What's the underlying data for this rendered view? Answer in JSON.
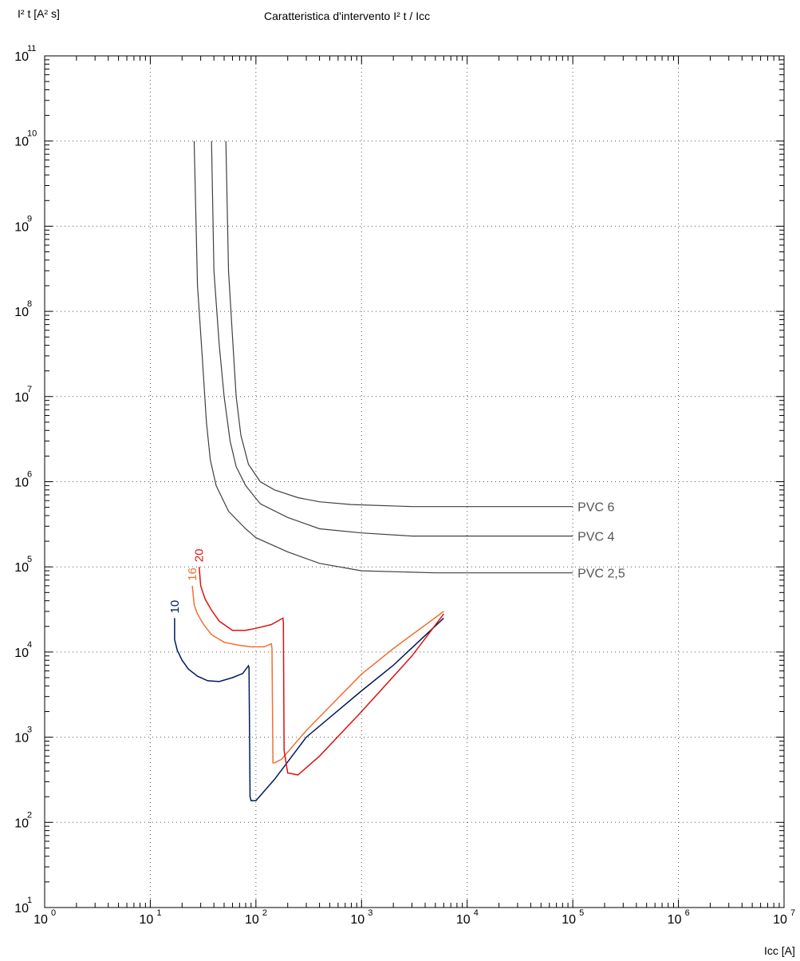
{
  "chart_data": {
    "type": "line",
    "title": "Caratteristica d'intervento I² t / Icc",
    "xlabel": "Icc [A]",
    "ylabel": "I² t [A² s]",
    "xscale": "log",
    "yscale": "log",
    "xlim": [
      1,
      10000000
    ],
    "ylim": [
      10,
      100000000000
    ],
    "grid": true,
    "x_ticks": [
      {
        "base": "10",
        "exp": "0"
      },
      {
        "base": "10",
        "exp": "1"
      },
      {
        "base": "10",
        "exp": "2"
      },
      {
        "base": "10",
        "exp": "3"
      },
      {
        "base": "10",
        "exp": "4"
      },
      {
        "base": "10",
        "exp": "5"
      },
      {
        "base": "10",
        "exp": "6"
      },
      {
        "base": "10",
        "exp": "7"
      }
    ],
    "y_ticks": [
      {
        "base": "10",
        "exp": "1"
      },
      {
        "base": "10",
        "exp": "2"
      },
      {
        "base": "10",
        "exp": "3"
      },
      {
        "base": "10",
        "exp": "4"
      },
      {
        "base": "10",
        "exp": "5"
      },
      {
        "base": "10",
        "exp": "6"
      },
      {
        "base": "10",
        "exp": "7"
      },
      {
        "base": "10",
        "exp": "8"
      },
      {
        "base": "10",
        "exp": "9"
      },
      {
        "base": "10",
        "exp": "10"
      },
      {
        "base": "10",
        "exp": "11"
      }
    ],
    "cable_curves": [
      {
        "label": "PVC 6",
        "color": "#404040",
        "points": [
          [
            52,
            10000000000
          ],
          [
            55,
            300000000
          ],
          [
            60,
            50000000
          ],
          [
            65,
            10000000
          ],
          [
            72,
            3500000
          ],
          [
            85,
            1600000
          ],
          [
            110,
            1000000
          ],
          [
            150,
            800000
          ],
          [
            250,
            650000
          ],
          [
            400,
            580000
          ],
          [
            800,
            540000
          ],
          [
            3000,
            510000
          ],
          [
            100000,
            510000
          ]
        ]
      },
      {
        "label": "PVC 4",
        "color": "#404040",
        "points": [
          [
            38,
            10000000000
          ],
          [
            40,
            300000000
          ],
          [
            45,
            40000000
          ],
          [
            50,
            10000000
          ],
          [
            57,
            3000000
          ],
          [
            65,
            1500000
          ],
          [
            80,
            900000
          ],
          [
            110,
            550000
          ],
          [
            200,
            380000
          ],
          [
            400,
            280000
          ],
          [
            1000,
            250000
          ],
          [
            3000,
            230000
          ],
          [
            100000,
            230000
          ]
        ]
      },
      {
        "label": "PVC 2,5",
        "color": "#404040",
        "points": [
          [
            26,
            10000000000
          ],
          [
            28,
            200000000
          ],
          [
            31,
            30000000
          ],
          [
            34,
            5000000
          ],
          [
            37,
            1800000
          ],
          [
            42,
            900000
          ],
          [
            55,
            450000
          ],
          [
            80,
            280000
          ],
          [
            100,
            220000
          ],
          [
            200,
            150000
          ],
          [
            400,
            110000
          ],
          [
            1000,
            90000
          ],
          [
            5000,
            85000
          ],
          [
            100000,
            85000
          ]
        ]
      }
    ],
    "series": [
      {
        "name": "10",
        "color": "#001a5c",
        "points": [
          [
            17,
            25000
          ],
          [
            17,
            14000
          ],
          [
            18,
            10500
          ],
          [
            20,
            8000
          ],
          [
            23,
            6300
          ],
          [
            28,
            5200
          ],
          [
            35,
            4600
          ],
          [
            45,
            4500
          ],
          [
            60,
            5000
          ],
          [
            75,
            5600
          ],
          [
            85,
            6900
          ],
          [
            86,
            6600
          ],
          [
            88,
            200
          ],
          [
            90,
            180
          ],
          [
            100,
            180
          ],
          [
            150,
            320
          ],
          [
            300,
            1000
          ],
          [
            1000,
            3500
          ],
          [
            2000,
            7000
          ],
          [
            6000,
            25000
          ]
        ]
      },
      {
        "name": "16",
        "color": "#f07030",
        "points": [
          [
            25,
            60000
          ],
          [
            26,
            36000
          ],
          [
            28,
            28000
          ],
          [
            32,
            21000
          ],
          [
            38,
            16000
          ],
          [
            50,
            13000
          ],
          [
            70,
            12000
          ],
          [
            90,
            11500
          ],
          [
            120,
            11500
          ],
          [
            140,
            12500
          ],
          [
            142,
            11000
          ],
          [
            145,
            500
          ],
          [
            150,
            500
          ],
          [
            175,
            550
          ],
          [
            300,
            1200
          ],
          [
            1000,
            5500
          ],
          [
            2000,
            11000
          ],
          [
            6000,
            30000
          ]
        ]
      },
      {
        "name": "20",
        "color": "#e01010",
        "points": [
          [
            29,
            100000
          ],
          [
            30,
            60000
          ],
          [
            33,
            42000
          ],
          [
            38,
            31000
          ],
          [
            45,
            23000
          ],
          [
            60,
            18000
          ],
          [
            80,
            18000
          ],
          [
            100,
            19000
          ],
          [
            140,
            21000
          ],
          [
            180,
            25000
          ],
          [
            182,
            22000
          ],
          [
            185,
            700
          ],
          [
            200,
            380
          ],
          [
            250,
            360
          ],
          [
            400,
            600
          ],
          [
            1000,
            2000
          ],
          [
            3000,
            9000
          ],
          [
            6000,
            28000
          ]
        ]
      }
    ]
  }
}
